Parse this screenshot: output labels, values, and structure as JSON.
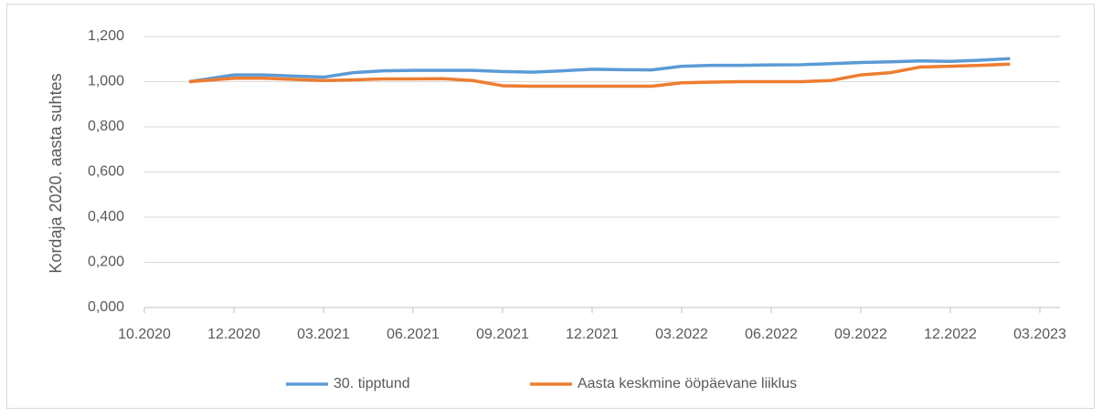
{
  "chart_data": {
    "type": "line",
    "y_label": "Kordaja 2020. aasta suhtes",
    "x": [
      "2020-11",
      "2020-12",
      "2021-01",
      "2021-02",
      "2021-03",
      "2021-04",
      "2021-05",
      "2021-06",
      "2021-07",
      "2021-08",
      "2021-09",
      "2021-10",
      "2021-11",
      "2021-12",
      "2022-01",
      "2022-02",
      "2022-03",
      "2022-04",
      "2022-05",
      "2022-06",
      "2022-07",
      "2022-08",
      "2022-09",
      "2022-10",
      "2022-11",
      "2022-12",
      "2023-01",
      "2023-02"
    ],
    "series": [
      {
        "name": "30. tipptund",
        "color": "#5b9bd5",
        "values": [
          1.0,
          1.03,
          1.03,
          1.025,
          1.02,
          1.04,
          1.048,
          1.05,
          1.05,
          1.05,
          1.045,
          1.042,
          1.048,
          1.055,
          1.053,
          1.052,
          1.068,
          1.072,
          1.072,
          1.074,
          1.075,
          1.08,
          1.085,
          1.088,
          1.092,
          1.09,
          1.095,
          1.102
        ]
      },
      {
        "name": "Aasta keskmine ööpäevane liiklus",
        "color": "#ed7d31",
        "values": [
          1.0,
          1.015,
          1.015,
          1.01,
          1.005,
          1.008,
          1.012,
          1.012,
          1.013,
          1.005,
          0.982,
          0.98,
          0.98,
          0.98,
          0.98,
          0.98,
          0.995,
          0.998,
          1.0,
          1.0,
          1.0,
          1.005,
          1.03,
          1.04,
          1.065,
          1.068,
          1.072,
          1.078
        ]
      }
    ],
    "xlim": [
      "2020-10",
      "2023-03"
    ],
    "xticks": [
      {
        "value": "2020-10",
        "label": "10.2020"
      },
      {
        "value": "2020-12",
        "label": "12.2020"
      },
      {
        "value": "2021-03",
        "label": "03.2021"
      },
      {
        "value": "2021-06",
        "label": "06.2021"
      },
      {
        "value": "2021-09",
        "label": "09.2021"
      },
      {
        "value": "2021-12",
        "label": "12.2021"
      },
      {
        "value": "2022-03",
        "label": "03.2022"
      },
      {
        "value": "2022-06",
        "label": "06.2022"
      },
      {
        "value": "2022-09",
        "label": "09.2022"
      },
      {
        "value": "2022-12",
        "label": "12.2022"
      },
      {
        "value": "2023-03",
        "label": "03.2023"
      }
    ],
    "ylim": [
      0,
      1.2
    ],
    "yticks": [
      {
        "value": 0,
        "label": "0,000"
      },
      {
        "value": 0.2,
        "label": "0,200"
      },
      {
        "value": 0.4,
        "label": "0,400"
      },
      {
        "value": 0.6,
        "label": "0,600"
      },
      {
        "value": 0.8,
        "label": "0,800"
      },
      {
        "value": 1.0,
        "label": "1,000"
      },
      {
        "value": 1.2,
        "label": "1,200"
      }
    ],
    "grid": true,
    "legend": "bottom"
  }
}
